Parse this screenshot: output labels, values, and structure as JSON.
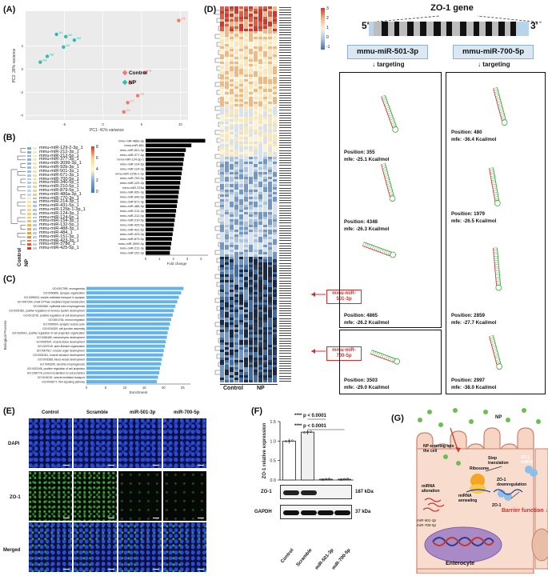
{
  "panel_labels": {
    "A": "(A)",
    "B": "(B)",
    "C": "(C)",
    "D": "(D)",
    "E": "(E)",
    "F": "(F)",
    "G": "(G)"
  },
  "panelA": {
    "xlabel": "PC1: 41% variance",
    "ylabel": "PC2: 28% variance",
    "legend": [
      {
        "name": "Control",
        "color": "#f4776b"
      },
      {
        "name": "NP",
        "color": "#27c0b2"
      }
    ],
    "points": [
      {
        "group": "Control",
        "x": 9.8,
        "y": 4.2,
        "label": "C5"
      },
      {
        "group": "Control",
        "x": 5.4,
        "y": -0.3,
        "label": "C6"
      },
      {
        "group": "Control",
        "x": 3.5,
        "y": -1.2,
        "label": "C8"
      },
      {
        "group": "Control",
        "x": 4.5,
        "y": -2.3,
        "label": "C9"
      },
      {
        "group": "Control",
        "x": 3.2,
        "y": -2.9,
        "label": "C7"
      },
      {
        "group": "Control",
        "x": 2.7,
        "y": -3.7,
        "label": "C1"
      },
      {
        "group": "NP",
        "x": -6.0,
        "y": 3.0,
        "label": "N1"
      },
      {
        "group": "NP",
        "x": -4.8,
        "y": 2.8,
        "label": "N2"
      },
      {
        "group": "NP",
        "x": -3.7,
        "y": 2.5,
        "label": "N3"
      },
      {
        "group": "NP",
        "x": -5.1,
        "y": 1.9,
        "label": "N4"
      },
      {
        "group": "NP",
        "x": -7.2,
        "y": 1.1,
        "label": "N5"
      },
      {
        "group": "NP",
        "x": -8.1,
        "y": 0.6,
        "label": "N6"
      }
    ],
    "xticks": [
      "-5",
      "0",
      "5",
      "10"
    ],
    "yticks": [
      "2",
      "0",
      "-2",
      "-4"
    ]
  },
  "panelB": {
    "mirnas": [
      "mmu-miR-129-2-3p_1",
      "mmu-miR-212-3p_1",
      "mmu-miR-212-5p_1",
      "mmu-miR-377-3p_1",
      "mmu-miR-3099-3p_1",
      "mmu-miR-92b-3p_1",
      "mmu-miR-501-3p_1",
      "mmu-miR-671-3p_1",
      "mmu-miR-700-5p_1",
      "mmu-miR-340-5p_1",
      "mmu-miR-210-5p_1",
      "mmu-miR-879-5p_1",
      "mmu-miR-486a-3p_1",
      "mmu-miR-770-3p_1",
      "mmu-miR-214-3p_1",
      "mmu-miR-431-5p_1",
      "mmu-miR-125b-1-3p_1",
      "mmu-miR-124-3p_1",
      "mmu-miR-124-5p_1",
      "mmu-miR-154-3p_1",
      "mmu-miR-132-5p_1",
      "mmu-miR-488-3p_1",
      "mmu-miR-484_1",
      "mmu-miR-151-3p_1",
      "mmu-miR-423-3p_1",
      "mmu-miR-378d_1",
      "mmu-miR-425-5p_1"
    ],
    "heat_colors": [
      [
        "#7fa8d3",
        "#f3f0c4"
      ],
      [
        "#86aed6",
        "#f2eec0"
      ],
      [
        "#8db3d8",
        "#f1ecbb"
      ],
      [
        "#90b4d9",
        "#f0eab8"
      ],
      [
        "#95b8db",
        "#f0e8b5"
      ],
      [
        "#9abcdd",
        "#efe6b1"
      ],
      [
        "#a1c1df",
        "#eee4ad"
      ],
      [
        "#a8c5e1",
        "#ede1a8"
      ],
      [
        "#aecae3",
        "#ecdea3"
      ],
      [
        "#b4cee4",
        "#ebdb9e"
      ],
      [
        "#bad1e5",
        "#ead899"
      ],
      [
        "#c0d5e6",
        "#e9d594"
      ],
      [
        "#c6d9e7",
        "#e8d28f"
      ],
      [
        "#fbe9b1",
        "#a7c4e0"
      ],
      [
        "#f9e3a5",
        "#a9c6e1"
      ],
      [
        "#f7dd99",
        "#abc7e1"
      ],
      [
        "#f5d68d",
        "#adc8e2"
      ],
      [
        "#f3cf82",
        "#afc9e2"
      ],
      [
        "#f1c777",
        "#b1cbe3"
      ],
      [
        "#efbf6d",
        "#b3cce3"
      ],
      [
        "#edb663",
        "#b5cde4"
      ],
      [
        "#eaac5a",
        "#b7cfe4"
      ],
      [
        "#e89f51",
        "#b9d0e5"
      ],
      [
        "#e5904a",
        "#bbd1e5"
      ],
      [
        "#e27c43",
        "#bdd2e6"
      ],
      [
        "#dc5d3a",
        "#bfd3e6"
      ],
      [
        "#d43a30",
        "#c1d4e7"
      ]
    ],
    "groups": [
      "Control",
      "NP"
    ],
    "colorbar_ticks": [
      "8",
      "6",
      "4",
      "2",
      "0"
    ],
    "bar_labels": [
      "mmu-miR-486a-3p",
      "mmu-miR-881",
      "mmu-miR-501-3p",
      "mmu-miR-377-3p",
      "mmu-miR-124-3p-1",
      "mmu-miR-124-5p",
      "mmu-miR-124-3p",
      "mmu-miR-125b-1-3p",
      "mmu-miR-700-5p",
      "mmu-miR-129-3p",
      "mmu-miR-378d",
      "mmu-miR-92b-3p",
      "mmu-miR-340-5p",
      "mmu-miR-671-3p",
      "mmu-miR-488-3p",
      "mmu-miR-214-3p",
      "mmu-miR-212-5p",
      "mmu-miR-210-5p",
      "mmu-miR-425-5p",
      "mmu-miR-431-5p",
      "mmu-miR-423-3p",
      "mmu-miR-879-5p",
      "mmu-miR-3099-3p",
      "mmu-miR-212-3p",
      "mmu-miR-151-3p"
    ],
    "bar_values": [
      4.3,
      3.3,
      2.9,
      2.8,
      2.75,
      2.7,
      2.65,
      2.6,
      2.55,
      2.5,
      2.45,
      2.4,
      2.35,
      2.3,
      2.25,
      2.2,
      2.15,
      2.1,
      2.05,
      2.0,
      1.95,
      1.9,
      1.85,
      1.8,
      1.75
    ],
    "bar_xticks": [
      "0",
      "1",
      "2",
      "3",
      "4"
    ],
    "bar_xlabel": "Fold change"
  },
  "panelC": {
    "terms": [
      "GO:0007399, neurogenesis",
      "GO:0050806, synapse organization",
      "GO:0099003, vesicle-mediated transport in synapse",
      "GO:0007264, small GTPase mediated signal transduction",
      "GO:0060562, epithelial tube morphogenesis",
      "GO:0051962, positive regulation of nervous system development",
      "GO:0010720, positive regulation of cell development",
      "GO:0001764, neuron migration",
      "GO:0099504, synaptic vesicle cycle",
      "GO:0034329, cell junction assembly",
      "GO:0030001, positive regulation of cell projection organization",
      "GO:0060485, mesenchyme development",
      "GO:0060537, muscle tissue development",
      "GO:0007015, actin filament organization",
      "GO:0007517, muscle organ development",
      "GO:0061061, muscle structure development",
      "GO:0001568, blood vessel development",
      "GO:0043269, dendrite morphogenesis",
      "GO:0031346, positive regulation of cell projection",
      "GO:1990778, protein localization to cell periphery",
      "GO:0016192, vesicle-mediated transport",
      "GO:0008277, Wnt signaling pathway"
    ],
    "values": [
      25.2,
      24.6,
      24.0,
      23.6,
      23.1,
      22.7,
      22.4,
      22.0,
      21.7,
      21.4,
      21.1,
      20.9,
      20.6,
      20.4,
      20.1,
      19.9,
      19.6,
      19.4,
      19.1,
      18.9,
      18.6,
      18.3
    ],
    "xticks": [
      "0",
      "5",
      "10",
      "15",
      "20",
      "25"
    ],
    "xlabel": "Enrichment",
    "ylabel": "Biological Process"
  },
  "panelD": {
    "group_labels": [
      "Control",
      "NP"
    ],
    "colorbar_ticks": [
      "3",
      "2",
      "1",
      "0",
      "-1"
    ],
    "highlight1": "mmu-miR-501-3p",
    "highlight2": "mmu-miR-700-5p",
    "gene_title": "ZO-1 gene",
    "five_prime": "5'",
    "three_prime": "3'",
    "mir1": "mmu-miR-501-3p",
    "mir2": "mmu-miR-700-5p",
    "targeting": "targeting",
    "sites_left": [
      {
        "position": "Position: 355",
        "mfe": "mfe:  -25.1 Kcal/mol"
      },
      {
        "position": "Position: 4348",
        "mfe": "mfe:  -26.3 Kcal/mol"
      },
      {
        "position": "Position: 4865",
        "mfe": "mfe:  -26.2 Kcal/mol"
      },
      {
        "position": "Position: 3503",
        "mfe": "mfe:  -29.0 Kcal/mol"
      }
    ],
    "sites_right": [
      {
        "position": "Position: 480",
        "mfe": "mfe:  -36.4 Kcal/mol"
      },
      {
        "position": "Position: 1979",
        "mfe": "mfe:  -26.5 Kcal/mol"
      },
      {
        "position": "Position: 2859",
        "mfe": "mfe:  -27.7 Kcal/mol"
      },
      {
        "position": "Position: 2997",
        "mfe": "mfe:  -38.0 Kcal/mol"
      }
    ]
  },
  "panelE": {
    "columns": [
      "Control",
      "Scramble",
      "miR-501-3p",
      "miR-700-5p"
    ],
    "rows": [
      "DAPI",
      "ZO-1",
      "Merged"
    ]
  },
  "panelF": {
    "ylabel": "ZO-1 relative expression",
    "yticks": [
      "1.5",
      "1.0",
      "0.5",
      "0.0"
    ],
    "categories": [
      "Control",
      "Scramble",
      "miR-501-3p",
      "miR-700-5p"
    ],
    "values": [
      1.0,
      1.23,
      0.02,
      0.02
    ],
    "sig1": "**** p < 0.0001",
    "sig2": "**** p < 0.0001",
    "blot1_name": "ZO-1",
    "blot1_size": "187 kDa",
    "blot2_name": "GAPDH",
    "blot2_size": "37 kDa"
  },
  "panelG": {
    "np": "NP",
    "np_entering": "NP entering into the cell",
    "ribosome": "Ribosome",
    "stop_translation": "Stop translation",
    "zo1_mrna": "ZO-1 mRNA",
    "zo1_down": "ZO-1 downregulation",
    "mirna_alteration": "miRNA alteration",
    "mirna_annealing": "miRNA annealing",
    "zo1": "ZO-1",
    "mir_list": "miR-501-3p miR-700-5p",
    "barrier": "Barrier function ↓",
    "enterocyte": "Enterocyte"
  }
}
